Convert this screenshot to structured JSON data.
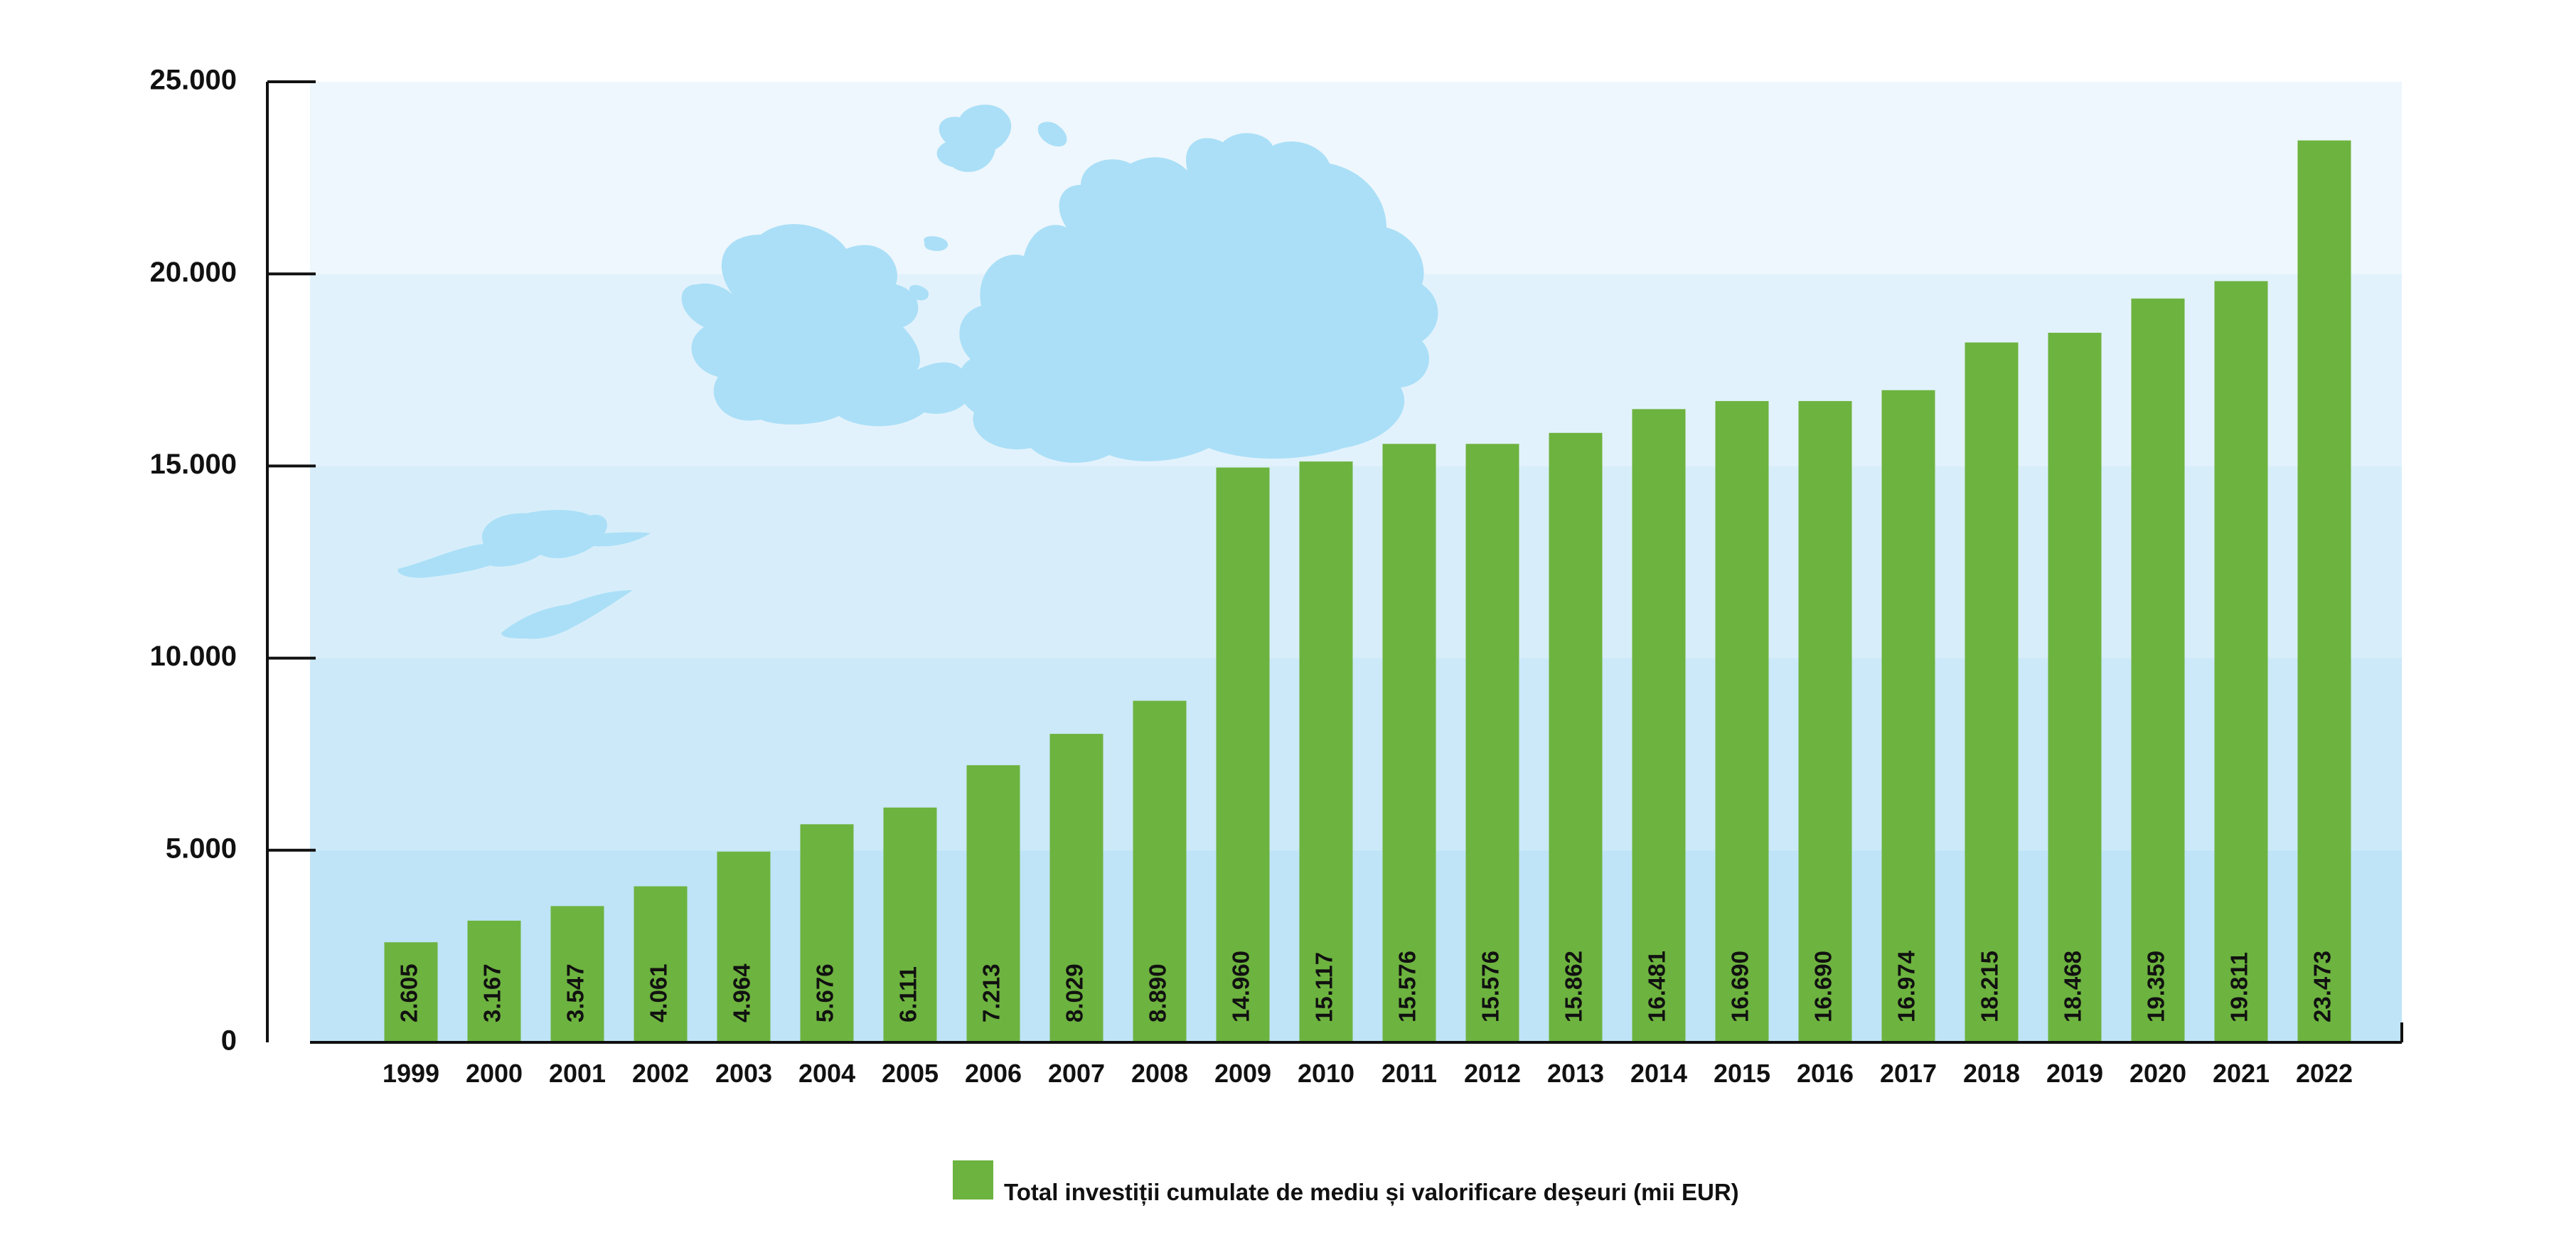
{
  "chart_data": {
    "type": "bar",
    "categories": [
      "1999",
      "2000",
      "2001",
      "2002",
      "2003",
      "2004",
      "2005",
      "2006",
      "2007",
      "2008",
      "2009",
      "2010",
      "2011",
      "2012",
      "2013",
      "2014",
      "2015",
      "2016",
      "2017",
      "2018",
      "2019",
      "2020",
      "2021",
      "2022"
    ],
    "series": [
      {
        "name": "Total investiții cumulate de mediu și valorificare deșeuri (mii EUR)",
        "values": [
          2605,
          3167,
          3547,
          4061,
          4964,
          5676,
          6111,
          7213,
          8029,
          8890,
          14960,
          15117,
          15576,
          15576,
          15862,
          16481,
          16690,
          16690,
          16974,
          18215,
          18468,
          19359,
          19811,
          23473
        ],
        "value_labels": [
          "2.605",
          "3.167",
          "3.547",
          "4.061",
          "4.964",
          "5.676",
          "6.111",
          "7.213",
          "8.029",
          "8.890",
          "14.960",
          "15.117",
          "15.576",
          "15.576",
          "15.862",
          "16.481",
          "16.690",
          "16.690",
          "16.974",
          "18.215",
          "18.468",
          "19.359",
          "19.811",
          "23.473"
        ]
      }
    ],
    "y_ticks": [
      0,
      5000,
      10000,
      15000,
      20000,
      25000
    ],
    "y_tick_labels": [
      "0",
      "5.000",
      "10.000",
      "15.000",
      "20.000",
      "25.000"
    ],
    "ylim": [
      0,
      25000
    ],
    "xlabel": "",
    "ylabel": "",
    "title": "",
    "legend_position": "bottom-center",
    "colors": {
      "bar": "#6db33f",
      "band_light": "#eef7fd",
      "band_dark": "#bfe4f7",
      "cloud": "#aadff7",
      "axis": "#111111"
    }
  }
}
